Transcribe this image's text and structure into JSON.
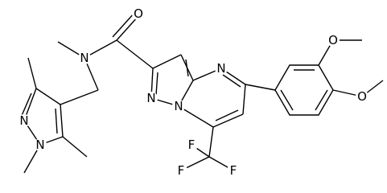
{
  "atoms": {
    "carbonyl_o": "O",
    "amide_n": "N",
    "pyrazole_n2": "N",
    "pyrazole_n1": "N",
    "ring_n1": "N",
    "bridge_n": "N",
    "ring_n4": "N",
    "methoxy_o3": "O",
    "methoxy_o4": "O",
    "f1": "F",
    "f2": "F",
    "f3": "F"
  }
}
